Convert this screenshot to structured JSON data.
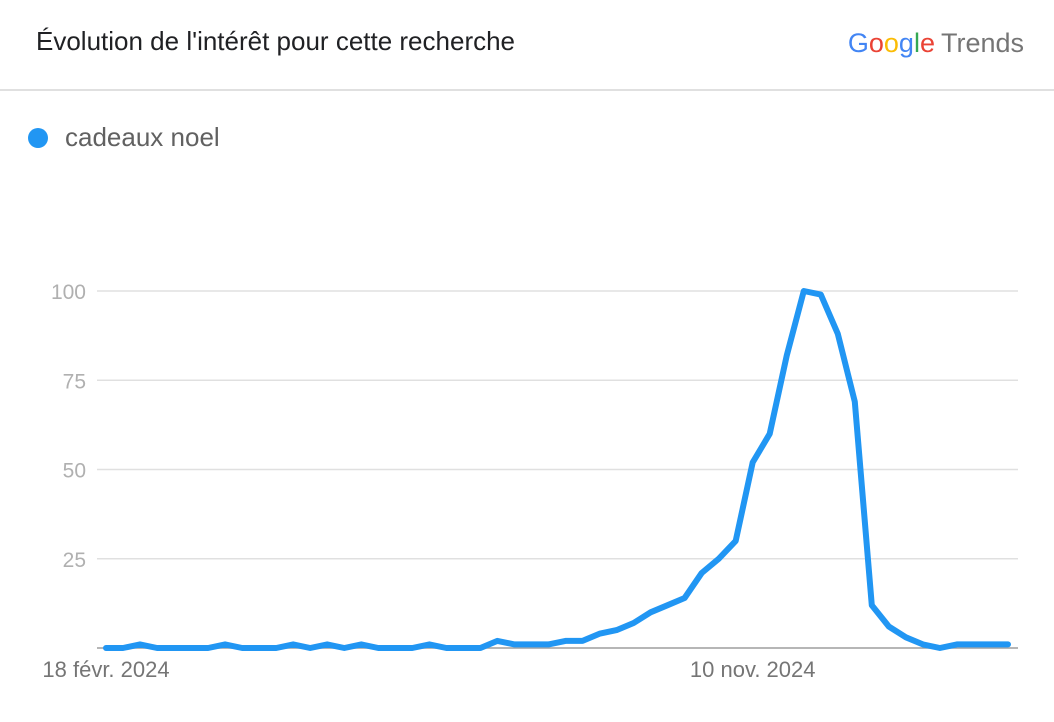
{
  "header": {
    "title": "Évolution de l'intérêt pour cette recherche",
    "brand": {
      "letters": [
        "G",
        "o",
        "o",
        "g",
        "l",
        "e"
      ],
      "letter_colors": [
        "#4285F4",
        "#EA4335",
        "#FBBC05",
        "#4285F4",
        "#34A853",
        "#EA4335"
      ],
      "product": "Trends"
    }
  },
  "legend": {
    "label": "cadeaux noel",
    "color": "#2196F3"
  },
  "chart_data": {
    "type": "line",
    "title": "Évolution de l'intérêt pour cette recherche",
    "xlabel": "",
    "ylabel": "",
    "ylim": [
      0,
      100
    ],
    "y_ticks": [
      "25",
      "50",
      "75",
      "100"
    ],
    "x_ticks": [
      {
        "label": "18 févr. 2024",
        "index": 0
      },
      {
        "label": "10 nov. 2024",
        "index": 38
      }
    ],
    "grid": true,
    "legend_position": "top-left",
    "series": [
      {
        "name": "cadeaux noel",
        "color": "#2196F3",
        "values": [
          0,
          0,
          1,
          0,
          0,
          0,
          0,
          1,
          0,
          0,
          0,
          1,
          0,
          1,
          0,
          1,
          0,
          0,
          0,
          1,
          0,
          0,
          0,
          2,
          1,
          1,
          1,
          2,
          2,
          4,
          5,
          7,
          10,
          12,
          14,
          21,
          25,
          30,
          52,
          60,
          82,
          100,
          99,
          88,
          69,
          12,
          6,
          3,
          1,
          0,
          1,
          1,
          1,
          1
        ]
      }
    ]
  }
}
